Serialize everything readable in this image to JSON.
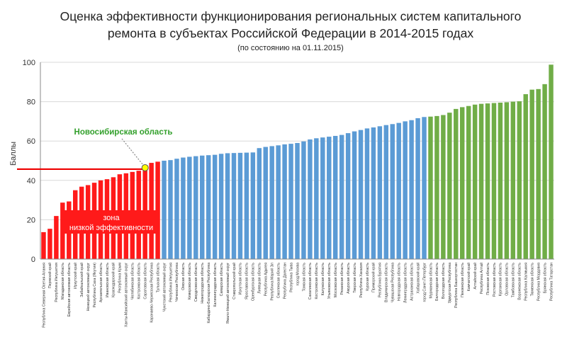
{
  "chart_data": {
    "type": "bar",
    "title": "Оценка эффективности функционирования региональных систем капитального ремонта в субъектах Российской Федерации в 2014-2015 годах",
    "subtitle": "(по состоянию на 01.11.2015)",
    "ylabel": "Баллы",
    "ylim": [
      0,
      100
    ],
    "yticks": [
      0,
      20,
      40,
      60,
      80,
      100
    ],
    "threshold_value": 45.7,
    "annotation": {
      "label": "Новосибирская область",
      "category": "Саратовская область",
      "value": 45.7
    },
    "zone_label_1": "зона",
    "zone_label_2": "низкой эффективности",
    "colors": {
      "low": "#ff1a1a",
      "mid": "#5b9bd5",
      "high": "#70ad47",
      "threshold": "#ee0000",
      "annotation": "#33a02c",
      "marker": "#ffff00"
    },
    "categories": [
      "Республика Северная Осетия-Алания",
      "Пермский край",
      "Республика Ингушетия",
      "Магаданская область",
      "Еврейская автономная область",
      "Иркутский край",
      "Забайкальский край",
      "Ненецкий автономный округ",
      "Республика Саха (Якутия)",
      "Архангельская область",
      "Ивановская область",
      "Краснодарский край",
      "Республика Крым",
      "Ханты-Мансийский автономный округ",
      "Челябинская область",
      "Костромская область",
      "Саратовская область",
      "Карачаево-Черкесская Республика",
      "Тульская область",
      "Чукотский автономный округ",
      "Республика Ингушетия",
      "Чеченская Республика",
      "Омская область",
      "Кемеровская область",
      "Свердловская область",
      "Нижегородская область",
      "Кабардино-Балкарская Республика",
      "Калининградская область",
      "Самарская область",
      "Ямало-Ненецкий автономный округ",
      "Ставропольский край",
      "Иркутская область",
      "Ярославская область",
      "Оренбургская область",
      "Липецкая область",
      "Республика Адыгея",
      "Республика Марий Эл",
      "Смоленская область",
      "Республика Дагестан",
      "Республика Тыва",
      "город Москва",
      "Томская область",
      "Сахалинская область",
      "Костромская область",
      "Калужская область",
      "Ульяновская область",
      "Московская область",
      "Рязанская область",
      "Амурская область",
      "Тверская область",
      "Республика Хакасия",
      "Курская область",
      "Приморский край",
      "Республика Бурятия",
      "Владимирская область",
      "Чувашская Республика",
      "Новгородская область",
      "Ленинградская область",
      "Астраханская область",
      "Хабаровский край",
      "город Санкт-Петербург",
      "Мурманская область",
      "Белгородская область",
      "Вологодская область",
      "Удмуртская Республика",
      "Республика Башкортостан",
      "Пензенская область",
      "Камчатский край",
      "Алтайский край",
      "Республика Алтай",
      "Псковская область",
      "Ростовская область",
      "Курганская область",
      "Орловская область",
      "Тамбовская область",
      "Воронежская область",
      "Республика Калмыкия",
      "Тюменская область",
      "Республика Мордовия",
      "Брянская область",
      "Республика Татарстан"
    ],
    "values": [
      13.7,
      15.4,
      21.9,
      28.7,
      29.3,
      35.0,
      36.8,
      37.6,
      38.8,
      40.0,
      40.6,
      41.6,
      43.1,
      43.6,
      44.3,
      44.9,
      45.7,
      48.9,
      49.5,
      50.0,
      50.3,
      51.0,
      51.6,
      52.0,
      52.3,
      52.6,
      52.8,
      53.0,
      53.5,
      53.8,
      53.9,
      54.0,
      54.1,
      54.2,
      56.4,
      57.0,
      57.4,
      57.8,
      58.3,
      58.6,
      59.0,
      59.8,
      60.8,
      61.4,
      61.8,
      62.2,
      62.6,
      63.1,
      64.0,
      64.9,
      65.6,
      66.4,
      66.9,
      67.5,
      68.1,
      68.6,
      69.2,
      70.0,
      70.6,
      71.6,
      72.2,
      72.4,
      72.7,
      73.2,
      74.4,
      76.3,
      77.2,
      77.8,
      78.5,
      78.9,
      79.1,
      79.3,
      79.5,
      79.7,
      80.0,
      80.2,
      83.8,
      86.1,
      86.4,
      88.9,
      98.8
    ]
  }
}
